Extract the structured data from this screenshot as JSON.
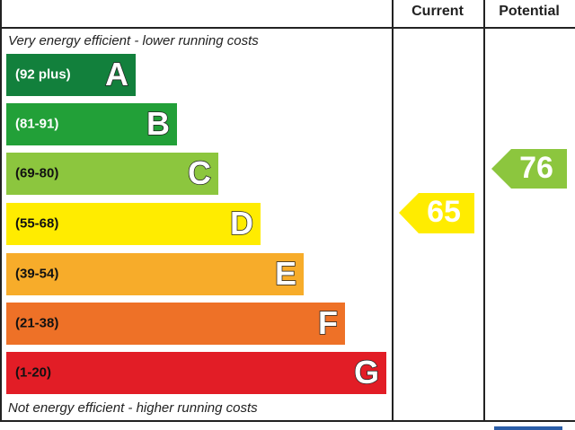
{
  "header": {
    "current": "Current",
    "potential": "Potential"
  },
  "top_note": "Very energy efficient - lower running costs",
  "bottom_note": "Not energy efficient - higher running costs",
  "bands": [
    {
      "range": "(92 plus)",
      "letter": "A",
      "color": "#12803c"
    },
    {
      "range": "(81-91)",
      "letter": "B",
      "color": "#22a038"
    },
    {
      "range": "(69-80)",
      "letter": "C",
      "color": "#8cc63e"
    },
    {
      "range": "(55-68)",
      "letter": "D",
      "color": "#ffec00"
    },
    {
      "range": "(39-54)",
      "letter": "E",
      "color": "#f7ac2a"
    },
    {
      "range": "(21-38)",
      "letter": "F",
      "color": "#ee7127"
    },
    {
      "range": "(1-20)",
      "letter": "G",
      "color": "#e21d26"
    }
  ],
  "current": {
    "value": "65",
    "color": "#ffec00"
  },
  "potential": {
    "value": "76",
    "color": "#8cc63e"
  }
}
